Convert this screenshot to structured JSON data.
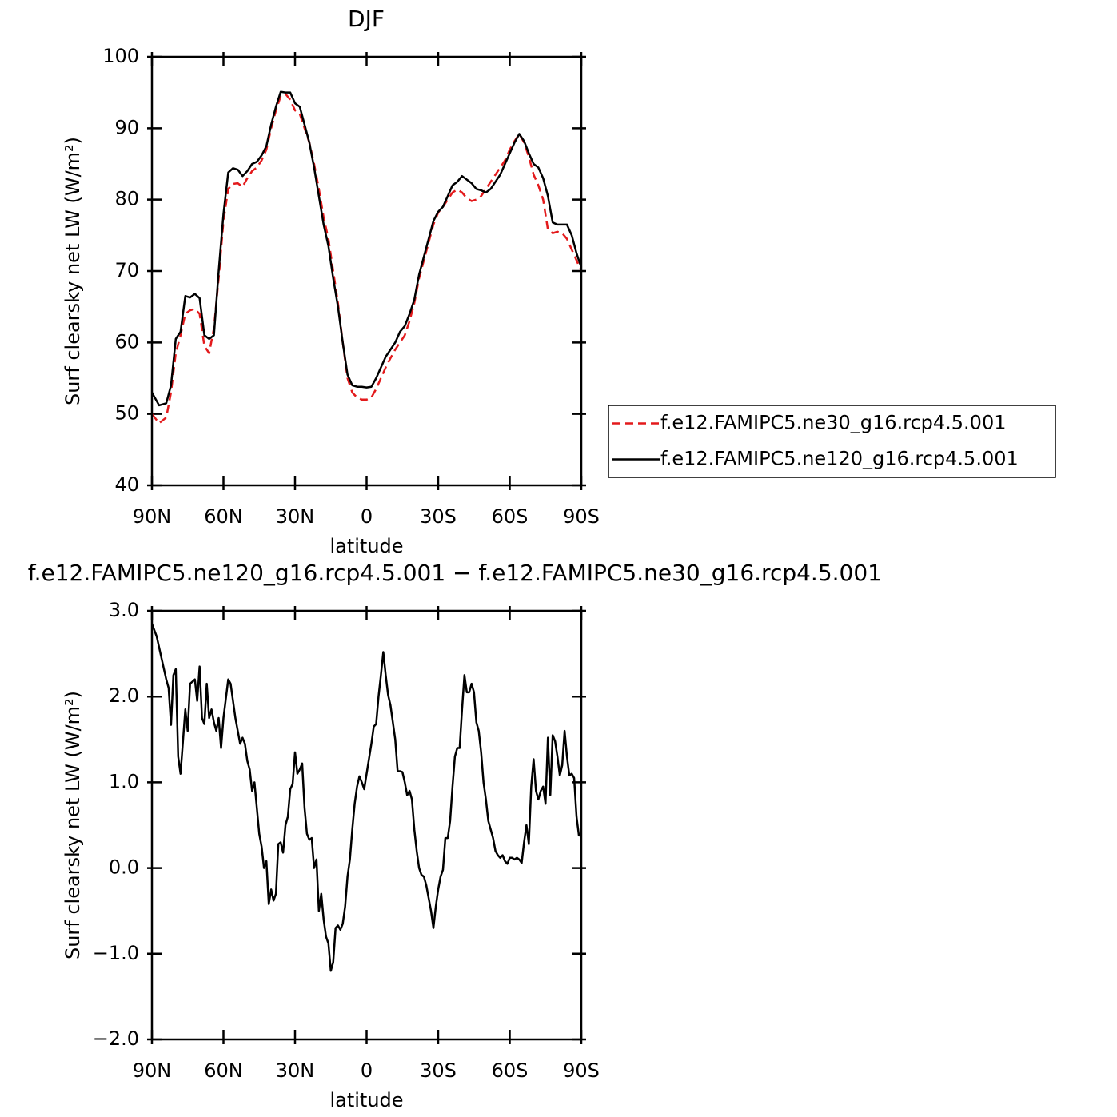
{
  "chart_data": [
    {
      "type": "line",
      "title": "DJF",
      "xlabel": "latitude",
      "ylabel": "Surf clearsky net LW (W/m²)",
      "xlim": [
        90,
        -90
      ],
      "xticks": [
        {
          "value": 90,
          "label": "90N"
        },
        {
          "value": 60,
          "label": "60N"
        },
        {
          "value": 30,
          "label": "30N"
        },
        0,
        {
          "value": -30,
          "label": "30S"
        },
        {
          "value": -60,
          "label": "60S"
        },
        {
          "value": -90,
          "label": "90S"
        }
      ],
      "ylim": [
        40,
        100
      ],
      "yticks": [
        40,
        50,
        60,
        70,
        80,
        90,
        100
      ],
      "legend": "right",
      "x": [
        90,
        87,
        84,
        82,
        80,
        78,
        76,
        74,
        72,
        70,
        68,
        66,
        64,
        62,
        60,
        58,
        56,
        54,
        52,
        50,
        48,
        46,
        44,
        42,
        40,
        38,
        36,
        34,
        32,
        30,
        28,
        26,
        24,
        22,
        20,
        18,
        16,
        14,
        12,
        10,
        8,
        6,
        4,
        2,
        0,
        -2,
        -4,
        -6,
        -8,
        -10,
        -12,
        -14,
        -16,
        -18,
        -20,
        -22,
        -24,
        -26,
        -28,
        -30,
        -32,
        -34,
        -36,
        -38,
        -40,
        -42,
        -44,
        -46,
        -48,
        -50,
        -52,
        -54,
        -56,
        -58,
        -60,
        -62,
        -64,
        -66,
        -68,
        -70,
        -72,
        -74,
        -76,
        -78,
        -80,
        -82,
        -84,
        -86,
        -88,
        -90
      ],
      "series": [
        {
          "name": "f.e12.FAMIPC5.ne30_g16.rcp4.5.001",
          "color": "#e31a1c",
          "dash": true,
          "values": [
            50,
            48.7,
            49.5,
            53,
            58.5,
            61,
            64,
            64.5,
            64.7,
            64,
            59.5,
            58.5,
            62,
            69,
            77,
            81.5,
            82.2,
            82.3,
            81.8,
            83,
            84,
            84.5,
            85.5,
            87,
            90,
            92.5,
            94.5,
            94.8,
            94,
            92.5,
            92,
            90,
            88,
            85,
            81.5,
            77.5,
            74.5,
            70,
            65.5,
            60,
            55,
            53,
            52.3,
            52,
            52,
            52.3,
            53.5,
            55,
            56.5,
            57.8,
            59,
            60,
            61,
            63,
            65.5,
            69,
            71.5,
            74,
            76.5,
            78.2,
            79,
            80,
            81,
            81.4,
            81,
            80.2,
            79.8,
            80,
            80.5,
            81.5,
            82.5,
            83.5,
            84.5,
            85.5,
            87,
            88.2,
            89.2,
            88,
            86,
            83.5,
            82,
            80,
            75.8,
            75.3,
            75.5,
            75.3,
            74.5,
            73,
            71.5,
            70
          ]
        },
        {
          "name": "f.e12.FAMIPC5.ne120_g16.rcp4.5.001",
          "color": "#000000",
          "dash": false,
          "values": [
            53,
            51.2,
            51.5,
            54,
            60.5,
            61.5,
            66.5,
            66.3,
            66.8,
            66.2,
            61,
            60.5,
            61,
            70,
            78,
            83.8,
            84.4,
            84.2,
            83.3,
            84,
            85,
            85.3,
            86.2,
            87.5,
            90.5,
            93,
            95.1,
            95,
            95,
            93.5,
            93,
            90.5,
            88,
            84.5,
            80.5,
            76.5,
            73.5,
            69,
            65,
            60,
            55.5,
            54,
            53.8,
            53.8,
            53.7,
            53.8,
            55,
            56.5,
            58,
            59,
            60,
            61.5,
            62.3,
            64,
            66,
            69.5,
            72,
            74.5,
            77,
            78.3,
            79,
            80.5,
            82,
            82.5,
            83.3,
            82.8,
            82.3,
            81.5,
            81.3,
            81,
            81.5,
            82.5,
            83.5,
            85,
            86.5,
            88,
            89.2,
            88.2,
            86.5,
            85,
            84.5,
            83,
            80.5,
            76.8,
            76.5,
            76.5,
            76.5,
            75,
            72.5,
            70.5
          ]
        }
      ]
    },
    {
      "type": "line",
      "title": "f.e12.FAMIPC5.ne120_g16.rcp4.5.001 − f.e12.FAMIPC5.ne30_g16.rcp4.5.001",
      "xlabel": "latitude",
      "ylabel": "Surf clearsky net LW (W/m²)",
      "xlim": [
        90,
        -90
      ],
      "xticks": [
        {
          "value": 90,
          "label": "90N"
        },
        {
          "value": 60,
          "label": "60N"
        },
        {
          "value": 30,
          "label": "30N"
        },
        0,
        {
          "value": -30,
          "label": "30S"
        },
        {
          "value": -60,
          "label": "60S"
        },
        {
          "value": -90,
          "label": "90S"
        }
      ],
      "ylim": [
        -2,
        3
      ],
      "yticks": [
        {
          "value": -2,
          "label": "−2.0"
        },
        {
          "value": -1,
          "label": "−1.0"
        },
        {
          "value": 0,
          "label": "0.0"
        },
        {
          "value": 1,
          "label": "1.0"
        },
        {
          "value": 2,
          "label": "2.0"
        },
        {
          "value": 3,
          "label": "3.0"
        }
      ],
      "x": [
        90,
        88,
        86,
        84,
        83,
        82,
        81,
        80,
        79,
        78,
        76,
        75,
        74,
        72,
        71,
        70,
        69,
        68,
        67,
        66,
        65,
        64,
        63,
        62,
        61,
        60,
        58,
        57,
        55,
        54,
        53,
        52,
        51,
        50,
        49,
        48,
        47,
        46,
        45,
        44,
        43,
        42,
        41,
        40,
        39,
        38,
        37,
        36,
        35,
        34,
        33,
        32,
        31,
        30,
        29,
        28,
        27,
        26,
        25,
        24,
        23,
        22,
        21,
        20,
        19,
        18,
        17,
        16,
        15,
        14,
        13,
        12,
        11,
        10,
        9,
        8,
        7,
        6,
        5,
        4,
        3,
        2,
        1,
        0,
        -2,
        -3,
        -4,
        -5,
        -6,
        -7,
        -8,
        -9,
        -10,
        -12,
        -13,
        -14,
        -15,
        -16,
        -17,
        -18,
        -19,
        -20,
        -21,
        -22,
        -23,
        -24,
        -25,
        -26,
        -27,
        -28,
        -29,
        -30,
        -31,
        -32,
        -33,
        -34,
        -35,
        -36,
        -37,
        -38,
        -39,
        -40,
        -41,
        -42,
        -43,
        -44,
        -45,
        -46,
        -47,
        -48,
        -49,
        -50,
        -51,
        -52,
        -53,
        -54,
        -55,
        -56,
        -57,
        -58,
        -59,
        -60,
        -61,
        -62,
        -63,
        -64,
        -65,
        -66,
        -67,
        -68,
        -69,
        -70,
        -71,
        -72,
        -73,
        -74,
        -75,
        -76,
        -77,
        -78,
        -79,
        -80,
        -81,
        -82,
        -83,
        -84,
        -85,
        -86,
        -87,
        -88,
        -89,
        -90
      ],
      "series": [
        {
          "name": null,
          "color": "#000000",
          "dash": false,
          "values": [
            2.85,
            2.7,
            2.45,
            2.2,
            2.1,
            1.67,
            2.25,
            2.32,
            1.3,
            1.1,
            1.85,
            1.6,
            2.15,
            2.2,
            1.95,
            2.35,
            1.75,
            1.68,
            2.15,
            1.75,
            1.85,
            1.7,
            1.6,
            1.75,
            1.4,
            1.75,
            2.2,
            2.15,
            1.75,
            1.6,
            1.45,
            1.52,
            1.45,
            1.25,
            1.15,
            0.9,
            1.0,
            0.7,
            0.4,
            0.25,
            0.0,
            0.08,
            -0.42,
            -0.25,
            -0.38,
            -0.3,
            0.28,
            0.3,
            0.18,
            0.5,
            0.6,
            0.92,
            0.98,
            1.35,
            1.1,
            1.15,
            1.22,
            0.7,
            0.4,
            0.33,
            0.35,
            0.0,
            0.1,
            -0.5,
            -0.3,
            -0.6,
            -0.8,
            -0.88,
            -1.2,
            -1.1,
            -0.7,
            -0.67,
            -0.72,
            -0.65,
            -0.45,
            -0.1,
            0.1,
            0.45,
            0.75,
            0.95,
            1.07,
            1.0,
            0.92,
            1.1,
            1.45,
            1.65,
            1.68,
            2.0,
            2.25,
            2.52,
            2.25,
            2.02,
            1.9,
            1.5,
            1.13,
            1.13,
            1.12,
            1.0,
            0.85,
            0.9,
            0.8,
            0.45,
            0.2,
            0.0,
            -0.08,
            -0.1,
            -0.2,
            -0.35,
            -0.5,
            -0.7,
            -0.45,
            -0.25,
            -0.1,
            -0.02,
            0.35,
            0.35,
            0.55,
            0.95,
            1.3,
            1.4,
            1.4,
            1.85,
            2.25,
            2.05,
            2.05,
            2.15,
            2.05,
            1.7,
            1.6,
            1.35,
            1.0,
            0.8,
            0.55,
            0.45,
            0.35,
            0.2,
            0.15,
            0.12,
            0.15,
            0.08,
            0.05,
            0.12,
            0.12,
            0.1,
            0.12,
            0.1,
            0.06,
            0.3,
            0.5,
            0.28,
            0.95,
            1.27,
            0.9,
            0.8,
            0.9,
            0.95,
            0.75,
            1.52,
            0.85,
            1.55,
            1.48,
            1.3,
            1.08,
            1.2,
            1.6,
            1.3,
            1.08,
            1.1,
            1.05,
            0.6,
            0.38,
            0.38
          ]
        }
      ]
    }
  ]
}
